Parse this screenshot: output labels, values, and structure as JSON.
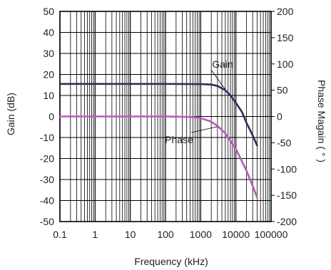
{
  "chart_data": {
    "type": "line",
    "xlabel": "Frequency (kHz)",
    "ylabel_left": "Gain (dB)",
    "ylabel_right": "Phase Magain ( ° )",
    "x_scale": "log",
    "xlim": [
      0.1,
      100000
    ],
    "ylim_left": [
      -50,
      50
    ],
    "ylim_right": [
      -200,
      200
    ],
    "x_ticks": [
      0.1,
      1,
      10,
      100,
      1000,
      10000,
      100000
    ],
    "x_tick_labels": [
      "0.1",
      "1",
      "10",
      "100",
      "1000",
      "10000",
      "100000"
    ],
    "y_left_ticks": [
      50,
      40,
      30,
      20,
      10,
      0,
      -10,
      -20,
      -30,
      -40,
      -50
    ],
    "y_left_tick_labels": [
      "50",
      "40",
      "30",
      "20",
      "10",
      "0",
      "-10",
      "-20",
      "-30",
      "-40",
      "-50"
    ],
    "y_right_ticks": [
      200,
      150,
      100,
      50,
      0,
      -50,
      -100,
      -150,
      -200
    ],
    "y_right_tick_labels": [
      "200",
      "150",
      "100",
      "50",
      "0",
      "-50",
      "-100",
      "-150",
      "-200"
    ],
    "grid": true,
    "series": [
      {
        "name": "Gain",
        "axis": "left",
        "color": "#2b2f5e",
        "x": [
          0.1,
          1,
          10,
          100,
          1000,
          2000,
          3000,
          5000,
          7000,
          10000,
          15000,
          20000,
          30000,
          40000
        ],
        "y": [
          15.5,
          15.5,
          15.5,
          15.5,
          15.4,
          15.2,
          14.5,
          12.5,
          10.0,
          6.5,
          2.0,
          -3.0,
          -9.0,
          -13.8
        ]
      },
      {
        "name": "Phase",
        "axis": "right",
        "color": "#b95bbd",
        "x": [
          0.1,
          1,
          10,
          100,
          500,
          1000,
          2000,
          3000,
          5000,
          10000,
          20000,
          30000,
          40000
        ],
        "y": [
          0,
          0,
          0,
          0,
          -1,
          -3,
          -10,
          -18,
          -32,
          -62,
          -103,
          -132,
          -154
        ]
      }
    ]
  }
}
